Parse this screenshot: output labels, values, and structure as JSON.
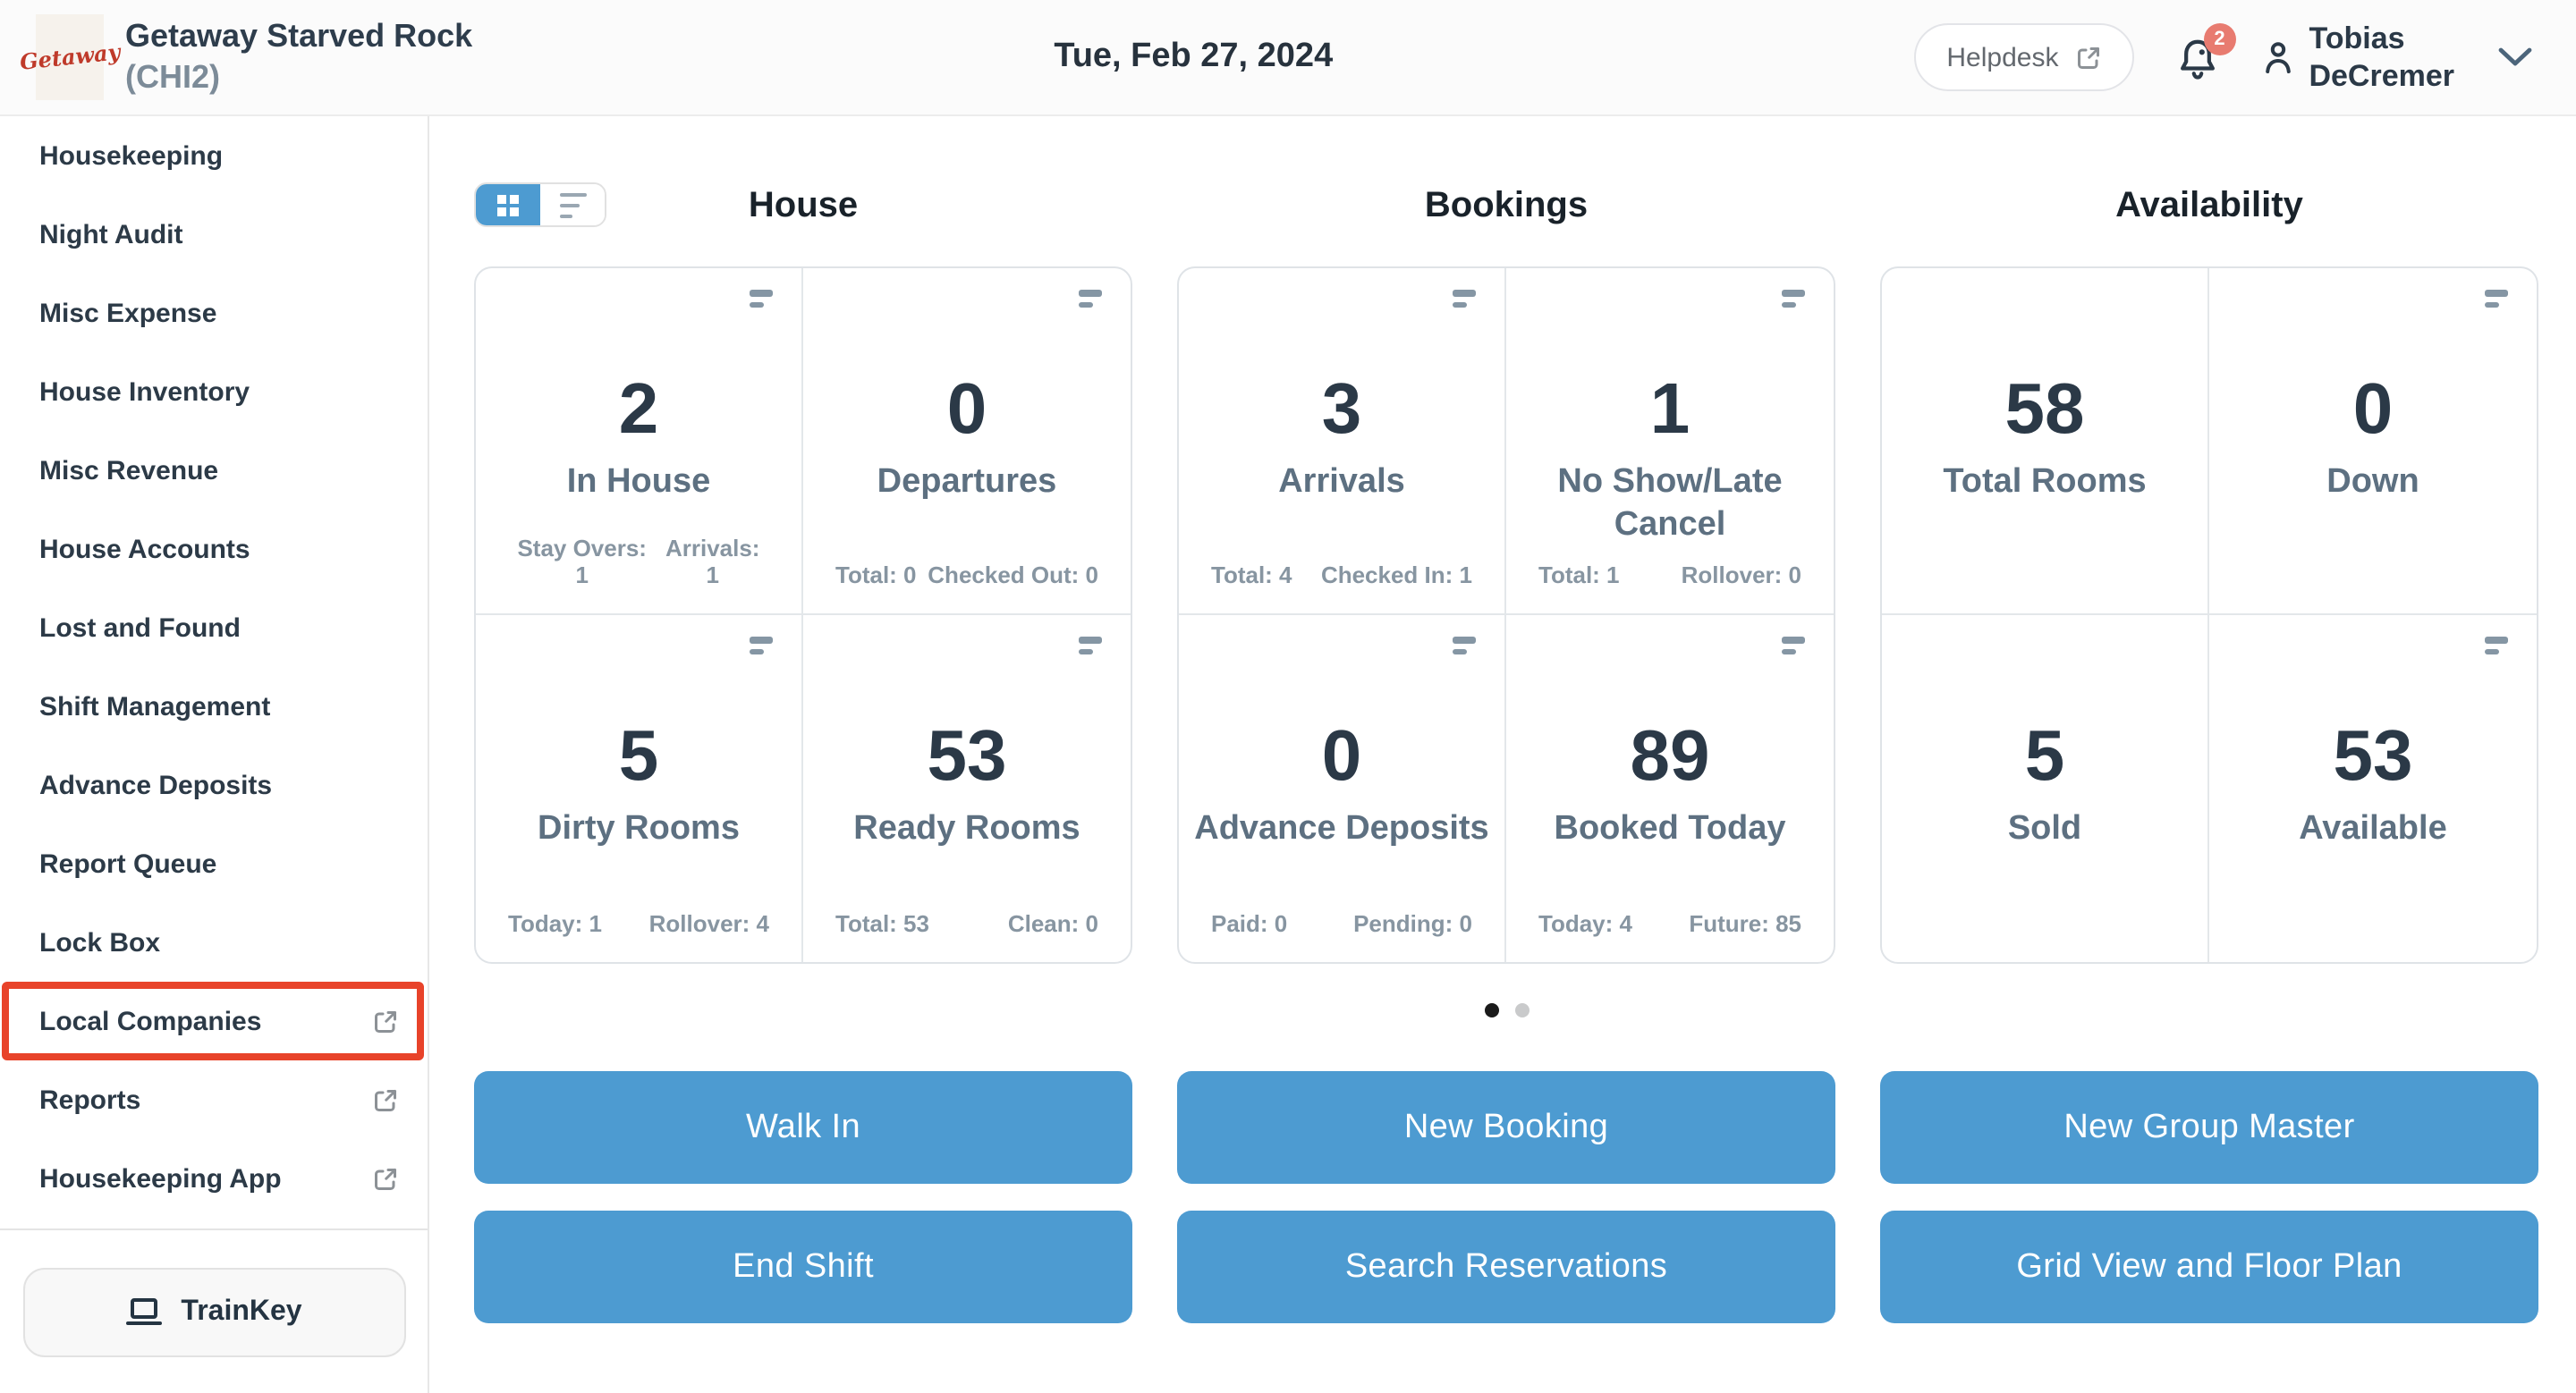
{
  "colors": {
    "accent_blue": "#4d9bd1",
    "highlight_red": "#e8432a",
    "badge_red": "#e87b70",
    "text_navy": "#2b3947"
  },
  "header": {
    "logo_text": "Getaway",
    "property_name": "Getaway Starved Rock",
    "property_code": "(CHI2)",
    "date": "Tue, Feb 27, 2024",
    "helpdesk_label": "Helpdesk",
    "notification_count": "2",
    "user_first_name": "Tobias",
    "user_last_name": "DeCremer"
  },
  "sidebar": {
    "items": [
      {
        "label": "Housekeeping",
        "external": false,
        "highlighted": false
      },
      {
        "label": "Night Audit",
        "external": false,
        "highlighted": false
      },
      {
        "label": "Misc Expense",
        "external": false,
        "highlighted": false
      },
      {
        "label": "House Inventory",
        "external": false,
        "highlighted": false
      },
      {
        "label": "Misc Revenue",
        "external": false,
        "highlighted": false
      },
      {
        "label": "House Accounts",
        "external": false,
        "highlighted": false
      },
      {
        "label": "Lost and Found",
        "external": false,
        "highlighted": false
      },
      {
        "label": "Shift Management",
        "external": false,
        "highlighted": false
      },
      {
        "label": "Advance Deposits",
        "external": false,
        "highlighted": false
      },
      {
        "label": "Report Queue",
        "external": false,
        "highlighted": false
      },
      {
        "label": "Lock Box",
        "external": false,
        "highlighted": false
      },
      {
        "label": "Local Companies",
        "external": true,
        "highlighted": true
      },
      {
        "label": "Reports",
        "external": true,
        "highlighted": false
      },
      {
        "label": "Housekeeping App",
        "external": true,
        "highlighted": false
      }
    ],
    "trainkey_label": "TrainKey"
  },
  "main": {
    "sections": [
      {
        "title": "House",
        "cards": [
          {
            "value": "2",
            "label": "In House",
            "stats": [
              "Stay Overs: 1",
              "Arrivals: 1"
            ],
            "icon": true
          },
          {
            "value": "0",
            "label": "Departures",
            "stats": [
              "Total: 0",
              "Checked Out: 0"
            ],
            "icon": true
          },
          {
            "value": "5",
            "label": "Dirty Rooms",
            "stats": [
              "Today: 1",
              "Rollover: 4"
            ],
            "icon": true
          },
          {
            "value": "53",
            "label": "Ready Rooms",
            "stats": [
              "Total: 53",
              "Clean: 0"
            ],
            "icon": true
          }
        ]
      },
      {
        "title": "Bookings",
        "cards": [
          {
            "value": "3",
            "label": "Arrivals",
            "stats": [
              "Total: 4",
              "Checked In: 1"
            ],
            "icon": true
          },
          {
            "value": "1",
            "label": "No Show/Late Cancel",
            "stats": [
              "Total: 1",
              "Rollover: 0"
            ],
            "icon": true
          },
          {
            "value": "0",
            "label": "Advance Deposits",
            "stats": [
              "Paid: 0",
              "Pending: 0"
            ],
            "icon": true
          },
          {
            "value": "89",
            "label": "Booked Today",
            "stats": [
              "Today: 4",
              "Future: 85"
            ],
            "icon": true
          }
        ]
      },
      {
        "title": "Availability",
        "cards": [
          {
            "value": "58",
            "label": "Total Rooms",
            "stats": [],
            "icon": false
          },
          {
            "value": "0",
            "label": "Down",
            "stats": [],
            "icon": true
          },
          {
            "value": "5",
            "label": "Sold",
            "stats": [],
            "icon": false
          },
          {
            "value": "53",
            "label": "Available",
            "stats": [],
            "icon": true
          }
        ]
      }
    ],
    "pagination": {
      "dots": 2,
      "active_index": 0
    },
    "actions": [
      [
        "Walk In",
        "New Booking",
        "New Group Master"
      ],
      [
        "End Shift",
        "Search Reservations",
        "Grid View and Floor Plan"
      ]
    ]
  }
}
